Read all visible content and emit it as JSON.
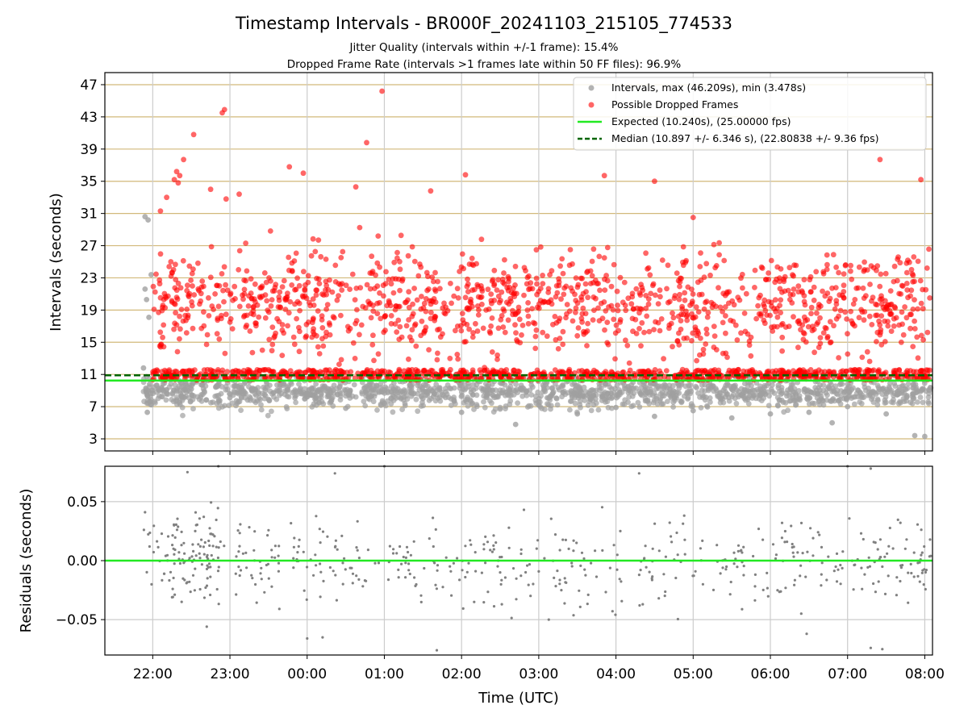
{
  "chart_data": [
    {
      "type": "scatter",
      "title": "Timestamp Intervals - BR000F_20241103_215105_774533",
      "subtitle_lines": [
        "Jitter Quality (intervals within +/-1 frame): 15.4%",
        "Dropped Frame Rate (intervals >1 frames late within 50 FF files): 96.9%"
      ],
      "xlabel": "",
      "ylabel": "Intervals (seconds)",
      "x_axis_type": "time (hours since 22:00 UTC, wrapping past midnight)",
      "xlim": [
        -0.62,
        10.1
      ],
      "ylim": [
        1.5,
        48.5
      ],
      "yticks": [
        3,
        7,
        11,
        15,
        19,
        23,
        27,
        31,
        35,
        39,
        43,
        47
      ],
      "grid": "horizontal tan lines at y ticks, vertical grey lines at x ticks",
      "legend_position": "top-right",
      "legend": [
        "Intervals, max (46.209s), min (3.478s)",
        "Possible Dropped Frames",
        "Expected (10.240s), (25.00000 fps)",
        "Median (10.897 +/- 6.346 s), (22.80838 +/- 9.36 fps)"
      ],
      "series": [
        {
          "name": "Intervals, max (46.209s), min (3.478s)",
          "color": "#a0a0a0",
          "distribution": "grey points mostly between 5 and 11 s across 21:51 to 08:05 UTC",
          "sample_points": [
            [
              -0.1,
              30.6
            ],
            [
              -0.06,
              30.2
            ],
            [
              -0.02,
              23.4
            ],
            [
              -0.08,
              20.3
            ],
            [
              -0.1,
              21.6
            ],
            [
              -0.05,
              18.1
            ],
            [
              -0.12,
              11.8
            ],
            [
              -0.04,
              9.8
            ],
            [
              -0.03,
              7.6
            ],
            [
              -0.07,
              6.3
            ],
            [
              0.5,
              9.2
            ],
            [
              1.0,
              8.1
            ],
            [
              1.5,
              7.9
            ],
            [
              2.0,
              8.5
            ],
            [
              2.5,
              6.8
            ],
            [
              3.0,
              7.4
            ],
            [
              3.5,
              8.0
            ],
            [
              4.0,
              6.3
            ],
            [
              4.5,
              6.7
            ],
            [
              5.0,
              7.2
            ],
            [
              5.5,
              6.1
            ],
            [
              6.0,
              6.9
            ],
            [
              6.5,
              5.8
            ],
            [
              7.0,
              6.5
            ],
            [
              7.5,
              5.6
            ],
            [
              8.0,
              6.1
            ],
            [
              8.5,
              6.3
            ],
            [
              9.0,
              7.0
            ],
            [
              9.5,
              6.1
            ],
            [
              9.87,
              3.4
            ],
            [
              10.0,
              3.3
            ],
            [
              8.8,
              5.0
            ],
            [
              4.7,
              4.8
            ]
          ]
        },
        {
          "name": "Possible Dropped Frames",
          "color": "#ff0000",
          "distribution": "red points from ~10.3 s up to ~46 s, dense band at 10.3-11.5 s",
          "highlight_points": [
            [
              2.97,
              46.2
            ],
            [
              0.93,
              43.9
            ],
            [
              0.9,
              43.5
            ],
            [
              2.77,
              39.8
            ],
            [
              0.53,
              40.8
            ],
            [
              1.95,
              36.0
            ],
            [
              0.4,
              37.7
            ],
            [
              9.42,
              37.7
            ],
            [
              5.85,
              35.7
            ],
            [
              0.75,
              34.0
            ],
            [
              1.12,
              33.4
            ],
            [
              0.28,
              35.2
            ],
            [
              0.31,
              36.2
            ],
            [
              0.33,
              34.8
            ],
            [
              0.35,
              35.7
            ],
            [
              1.77,
              36.8
            ],
            [
              6.5,
              35.0
            ],
            [
              4.05,
              35.8
            ],
            [
              0.95,
              32.8
            ],
            [
              0.18,
              33.0
            ],
            [
              0.1,
              31.3
            ],
            [
              3.6,
              33.8
            ],
            [
              2.63,
              34.3
            ],
            [
              9.95,
              35.2
            ],
            [
              7.0,
              30.5
            ]
          ]
        },
        {
          "name": "Expected (10.240s), (25.00000 fps)",
          "type": "hline",
          "value": 10.24,
          "color": "#22e922"
        },
        {
          "name": "Median (10.897 +/- 6.346 s), (22.80838 +/- 9.36 fps)",
          "type": "hline",
          "value": 10.897,
          "color": "#006400",
          "style": "dashed"
        }
      ]
    },
    {
      "type": "scatter",
      "xlabel": "Time (UTC)",
      "ylabel": "Residuals (seconds)",
      "xlim": [
        -0.62,
        10.1
      ],
      "ylim": [
        -0.08,
        0.08
      ],
      "yticks": [
        -0.05,
        0.0,
        0.05
      ],
      "ytick_labels": [
        "−0.05",
        "0.00",
        "0.05"
      ],
      "xticks": [
        0,
        1,
        2,
        3,
        4,
        5,
        6,
        7,
        8,
        9,
        10
      ],
      "xtick_labels": [
        "22:00",
        "23:00",
        "00:00",
        "01:00",
        "02:00",
        "03:00",
        "04:00",
        "05:00",
        "06:00",
        "07:00",
        "08:00"
      ],
      "grid": true,
      "series": [
        {
          "name": "",
          "color": "#808080",
          "distribution": "grey points scattered between -0.08 and 0.08 s, concentrated near 0",
          "sample_points": [
            [
              -0.1,
              0.041
            ],
            [
              0.45,
              0.075
            ],
            [
              0.85,
              0.08
            ],
            [
              2.36,
              0.074
            ],
            [
              3.0,
              0.08
            ],
            [
              6.3,
              0.074
            ],
            [
              9.0,
              0.08
            ],
            [
              9.3,
              0.078
            ],
            [
              0.7,
              -0.056
            ],
            [
              2.0,
              -0.066
            ],
            [
              2.2,
              -0.065
            ],
            [
              3.68,
              -0.076
            ],
            [
              5.13,
              -0.05
            ],
            [
              8.47,
              -0.062
            ],
            [
              9.3,
              -0.074
            ],
            [
              9.45,
              -0.075
            ],
            [
              0.55,
              0.025
            ],
            [
              3.2,
              0.012
            ],
            [
              4.5,
              -0.01
            ],
            [
              6.8,
              0.005
            ]
          ]
        },
        {
          "name": "",
          "type": "hline",
          "value": 0.0,
          "color": "#22e922"
        }
      ]
    }
  ]
}
